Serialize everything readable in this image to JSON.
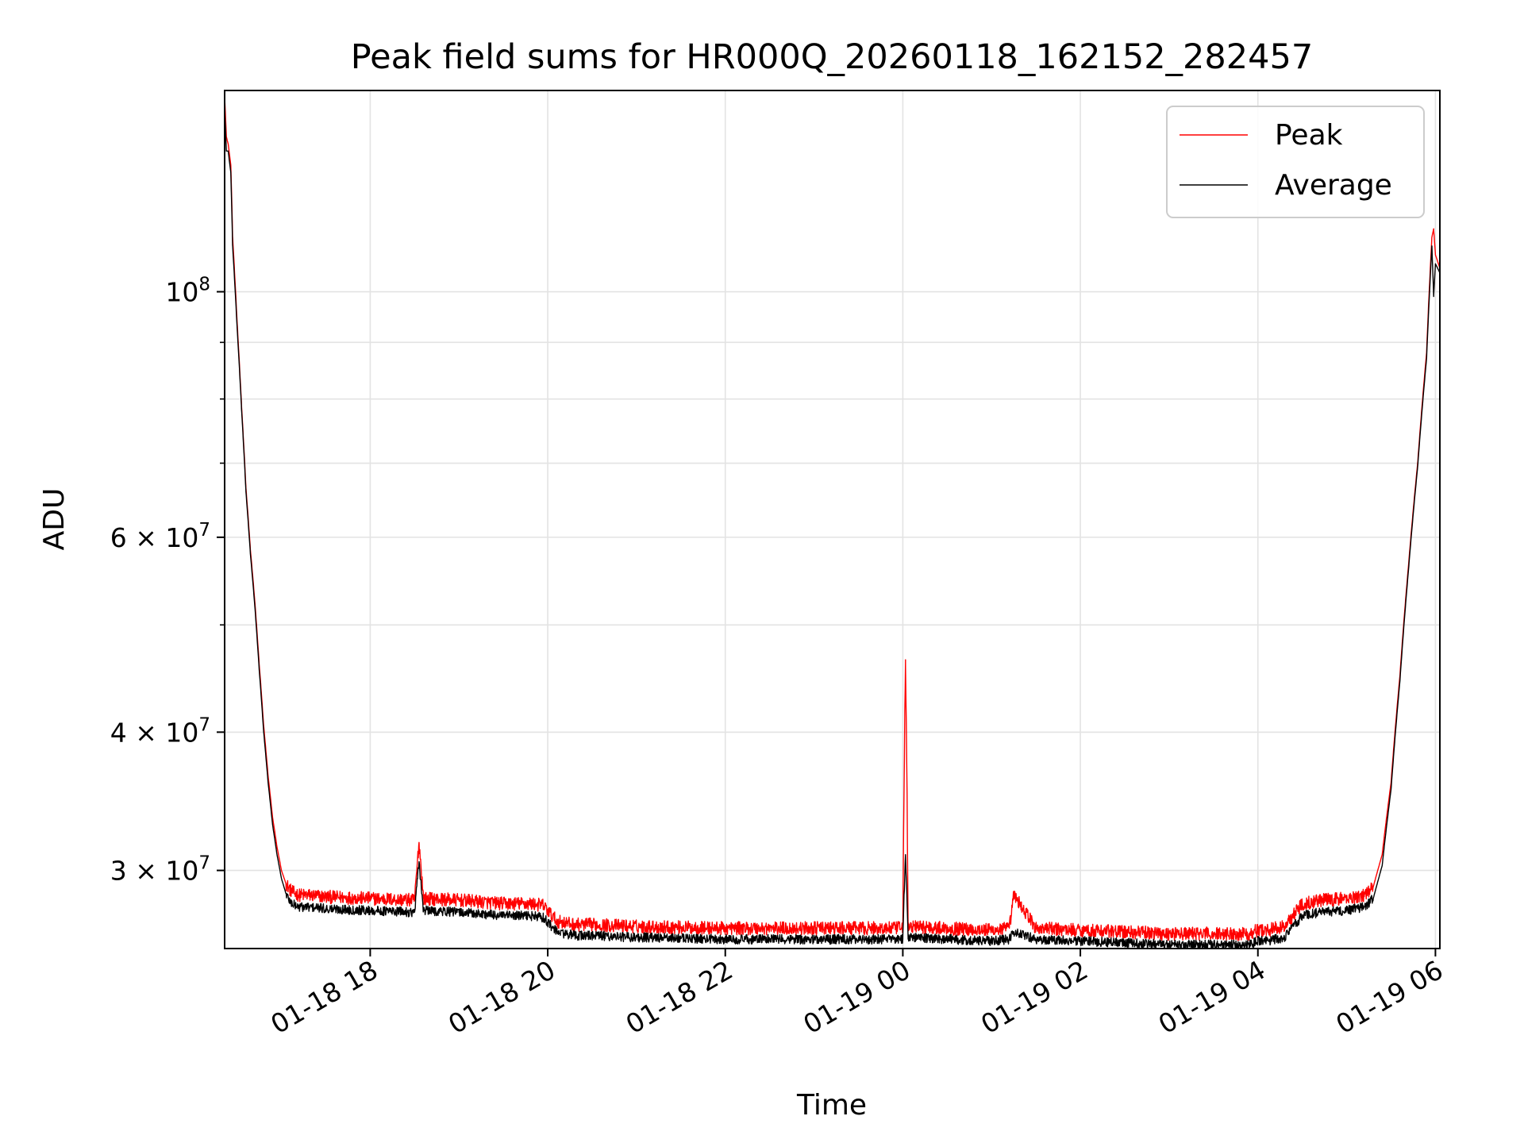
{
  "chart_data": {
    "type": "line",
    "title": "Peak field sums for HR000Q_20260118_162152_282457",
    "xlabel": "Time",
    "ylabel": "ADU",
    "yscale": "log",
    "ylim": [
      25500000,
      152000000
    ],
    "xlim_hours": [
      16.36,
      30.05
    ],
    "grid": true,
    "legend_position": "upper right",
    "colors": {
      "Peak": "#ff0000",
      "Average": "#000000"
    },
    "x_ticks": [
      {
        "hour": 18,
        "label": "01-18 18"
      },
      {
        "hour": 20,
        "label": "01-18 20"
      },
      {
        "hour": 22,
        "label": "01-18 22"
      },
      {
        "hour": 24,
        "label": "01-19 00"
      },
      {
        "hour": 26,
        "label": "01-19 02"
      },
      {
        "hour": 28,
        "label": "01-19 04"
      },
      {
        "hour": 30,
        "label": "01-19 06"
      }
    ],
    "y_major_ticks": [
      {
        "value": 100000000,
        "base": "10",
        "exp": "8",
        "mant": ""
      },
      {
        "value": 60000000,
        "base": "10",
        "exp": "7",
        "mant": "6 × "
      },
      {
        "value": 40000000,
        "base": "10",
        "exp": "7",
        "mant": "4 × "
      },
      {
        "value": 30000000,
        "base": "10",
        "exp": "7",
        "mant": "3 × "
      }
    ],
    "y_minor_ticks": [
      90000000,
      80000000,
      70000000,
      50000000
    ],
    "series": [
      {
        "name": "Peak",
        "x": [
          16.36,
          16.38,
          16.4,
          16.43,
          16.45,
          16.5,
          16.55,
          16.6,
          16.65,
          16.7,
          16.75,
          16.8,
          16.85,
          16.9,
          16.95,
          17.0,
          17.05,
          17.1,
          17.15,
          17.2,
          17.3,
          17.5,
          18.0,
          18.5,
          18.55,
          18.6,
          19.0,
          19.5,
          19.8,
          19.95,
          20.1,
          20.3,
          20.5,
          21.0,
          22.0,
          23.0,
          23.5,
          24.0,
          24.03,
          24.06,
          24.1,
          24.5,
          25.0,
          25.2,
          25.25,
          25.5,
          26.0,
          26.5,
          27.0,
          27.5,
          27.9,
          28.0,
          28.1,
          28.3,
          28.5,
          28.7,
          29.0,
          29.2,
          29.3,
          29.4,
          29.5,
          29.6,
          29.7,
          29.8,
          29.9,
          29.96,
          29.98,
          30.0,
          30.05
        ],
        "y": [
          150000000,
          138000000,
          136000000,
          130000000,
          112000000,
          94000000,
          79000000,
          66500000,
          58500000,
          52500000,
          46000000,
          40500000,
          36500000,
          33500000,
          31500000,
          30000000,
          29200000,
          28800000,
          28600000,
          28500000,
          28500000,
          28400000,
          28300000,
          28200000,
          31800000,
          28300000,
          28200000,
          28000000,
          28000000,
          27900000,
          27000000,
          26800000,
          26800000,
          26700000,
          26600000,
          26600000,
          26600000,
          26600000,
          46500000,
          26600000,
          26700000,
          26600000,
          26500000,
          26600000,
          28500000,
          26600000,
          26500000,
          26400000,
          26300000,
          26300000,
          26300000,
          26500000,
          26500000,
          26700000,
          28000000,
          28200000,
          28300000,
          28500000,
          29000000,
          31000000,
          36000000,
          45000000,
          57000000,
          70000000,
          88000000,
          112000000,
          114000000,
          108000000,
          105000000
        ]
      },
      {
        "name": "Average",
        "x": [
          16.36,
          16.38,
          16.4,
          16.43,
          16.45,
          16.5,
          16.55,
          16.6,
          16.65,
          16.7,
          16.75,
          16.8,
          16.85,
          16.9,
          16.95,
          17.0,
          17.05,
          17.1,
          17.15,
          17.2,
          17.3,
          17.5,
          18.0,
          18.5,
          18.55,
          18.6,
          19.0,
          19.5,
          19.8,
          19.95,
          20.1,
          20.3,
          20.5,
          21.0,
          22.0,
          23.0,
          23.5,
          24.0,
          24.03,
          24.06,
          24.1,
          24.5,
          25.0,
          25.2,
          25.25,
          25.5,
          26.0,
          26.5,
          27.0,
          27.5,
          27.9,
          28.0,
          28.1,
          28.3,
          28.5,
          28.7,
          29.0,
          29.2,
          29.3,
          29.4,
          29.5,
          29.6,
          29.7,
          29.8,
          29.9,
          29.96,
          29.98,
          30.0,
          30.05
        ],
        "y": [
          146000000,
          134000000,
          134000000,
          128000000,
          110000000,
          93000000,
          78500000,
          66000000,
          58000000,
          52000000,
          45500000,
          40000000,
          36000000,
          33000000,
          31000000,
          29500000,
          28600000,
          28100000,
          27900000,
          27800000,
          27800000,
          27700000,
          27600000,
          27500000,
          30500000,
          27600000,
          27500000,
          27300000,
          27300000,
          27200000,
          26400000,
          26200000,
          26200000,
          26100000,
          26000000,
          26000000,
          26000000,
          26000000,
          31000000,
          26000000,
          26100000,
          26000000,
          25900000,
          26000000,
          26400000,
          26000000,
          25900000,
          25800000,
          25700000,
          25700000,
          25700000,
          25900000,
          25900000,
          26100000,
          27300000,
          27500000,
          27600000,
          27800000,
          28300000,
          30300000,
          35500000,
          44500000,
          56500000,
          69500000,
          87000000,
          110000000,
          99000000,
          106000000,
          104000000
        ]
      }
    ]
  }
}
